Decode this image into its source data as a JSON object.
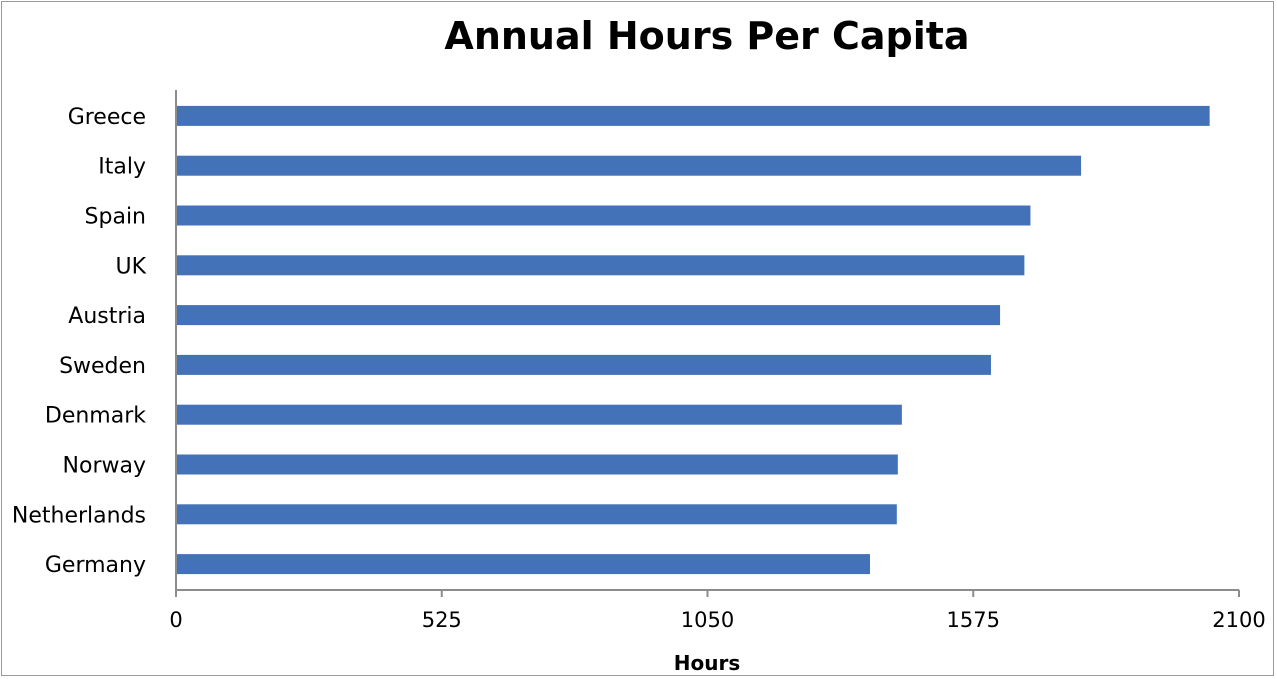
{
  "chart_data": {
    "type": "bar",
    "orientation": "horizontal",
    "title": "Annual Hours Per Capita",
    "xlabel": "Hours",
    "ylabel": "",
    "xlim": [
      0,
      2100
    ],
    "ticks": [
      "0",
      "525",
      "1050",
      "1575",
      "2100"
    ],
    "tick_values": [
      0,
      525,
      1050,
      1575,
      2100
    ],
    "categories": [
      "Greece",
      "Italy",
      "Spain",
      "UK",
      "Austria",
      "Sweden",
      "Denmark",
      "Norway",
      "Netherlands",
      "Germany"
    ],
    "values": [
      2042,
      1788,
      1688,
      1676,
      1628,
      1610,
      1434,
      1426,
      1424,
      1371
    ],
    "bar_color": "#4472b8",
    "grid": false,
    "legend": "none"
  }
}
